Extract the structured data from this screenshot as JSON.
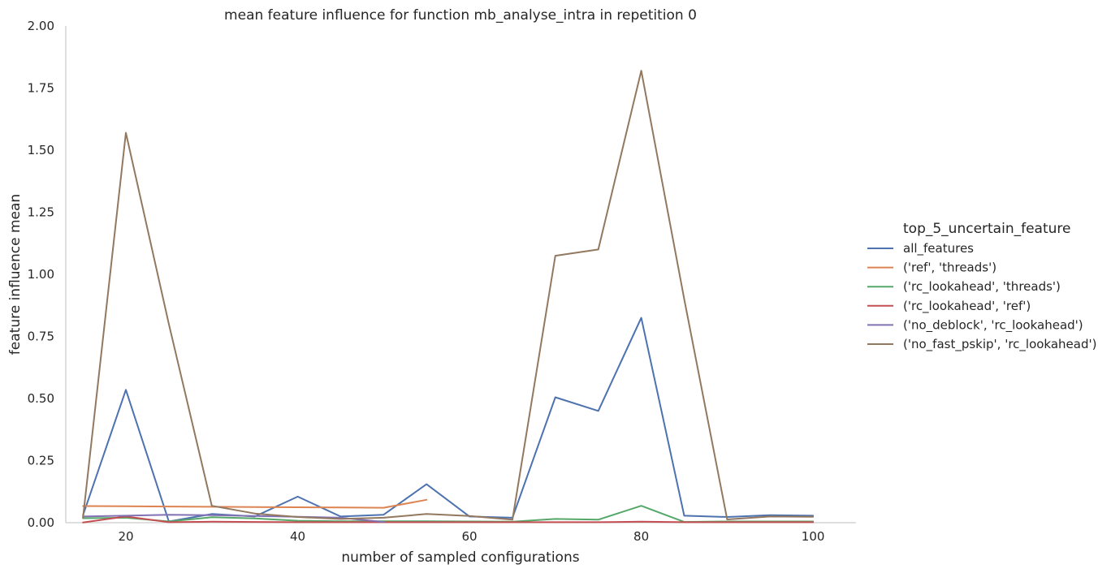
{
  "chart_data": {
    "type": "line",
    "title": "mean feature influence for function mb_analyse_intra in repetition 0",
    "xlabel": "number of sampled configurations",
    "ylabel": "feature influence mean",
    "xlim": [
      13,
      105
    ],
    "ylim": [
      0,
      2.0
    ],
    "x_ticks": [
      20,
      40,
      60,
      80,
      100
    ],
    "x_tick_labels": [
      "20",
      "40",
      "60",
      "80",
      "100"
    ],
    "y_ticks": [
      0,
      0.25,
      0.5,
      0.75,
      1.0,
      1.25,
      1.5,
      1.75,
      2.0
    ],
    "y_tick_labels": [
      "0.00",
      "0.25",
      "0.50",
      "0.75",
      "1.00",
      "1.25",
      "1.50",
      "1.75",
      "2.00"
    ],
    "grid": false,
    "legend": {
      "title": "top_5_uncertain_feature",
      "placement": "outside-right"
    },
    "series": [
      {
        "name": "all_features",
        "color": "#4c72b0",
        "x": [
          15,
          20,
          25,
          30,
          35,
          40,
          45,
          50,
          55,
          60,
          65,
          70,
          75,
          80,
          85,
          90,
          95,
          100
        ],
        "values": [
          0.03,
          0.535,
          0.005,
          0.035,
          0.025,
          0.105,
          0.025,
          0.032,
          0.155,
          0.025,
          0.02,
          0.505,
          0.45,
          0.825,
          0.028,
          0.023,
          0.03,
          0.028
        ]
      },
      {
        "name": "('ref', 'threads')",
        "color": "#dd8452",
        "x": [
          15,
          20,
          25,
          30,
          35,
          40,
          45,
          50,
          55
        ],
        "values": [
          0.067,
          0.066,
          0.065,
          0.064,
          0.063,
          0.062,
          0.061,
          0.06,
          0.092
        ]
      },
      {
        "name": "('rc_lookahead', 'threads')",
        "color": "#55a868",
        "x": [
          15,
          20,
          25,
          30,
          35,
          40,
          45,
          50,
          55,
          60,
          65,
          70,
          75,
          80,
          85,
          90,
          95,
          100
        ],
        "values": [
          0.018,
          0.02,
          0.005,
          0.022,
          0.017,
          0.008,
          0.006,
          0.006,
          0.006,
          0.005,
          0.004,
          0.015,
          0.012,
          0.068,
          0.003,
          0.005,
          0.005,
          0.005
        ]
      },
      {
        "name": "('rc_lookahead', 'ref')",
        "color": "#c44e52",
        "x": [
          15,
          20,
          25,
          30,
          35,
          40,
          45,
          50,
          55,
          60,
          65,
          70,
          75,
          80,
          85,
          90,
          95,
          100
        ],
        "values": [
          0.001,
          0.025,
          0.002,
          0.004,
          0.003,
          0.002,
          0.002,
          0.002,
          0.002,
          0.002,
          0.002,
          0.002,
          0.002,
          0.004,
          0.002,
          0.002,
          0.002,
          0.002
        ]
      },
      {
        "name": "('no_deblock', 'rc_lookahead')",
        "color": "#8172b3",
        "x": [
          15,
          20,
          25,
          30,
          35,
          40,
          45,
          50
        ],
        "values": [
          0.025,
          0.028,
          0.032,
          0.03,
          0.027,
          0.024,
          0.02,
          0.003
        ]
      },
      {
        "name": "('no_fast_pskip', 'rc_lookahead')",
        "color": "#937860",
        "x": [
          15,
          20,
          25,
          30,
          35,
          40,
          45,
          50,
          55,
          60,
          65,
          70,
          75,
          80,
          85,
          90,
          95,
          100
        ],
        "values": [
          0.02,
          1.57,
          0.8,
          0.068,
          0.037,
          0.023,
          0.015,
          0.02,
          0.035,
          0.027,
          0.012,
          1.075,
          1.1,
          1.82,
          0.9,
          0.013,
          0.025,
          0.024
        ]
      }
    ]
  }
}
